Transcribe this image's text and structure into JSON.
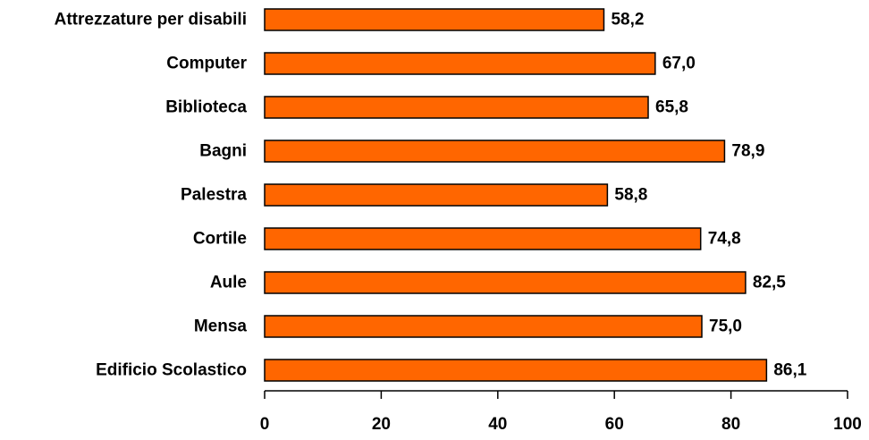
{
  "chart_data": {
    "type": "bar",
    "orientation": "horizontal",
    "categories": [
      "Attrezzature per disabili",
      "Computer",
      "Biblioteca",
      "Bagni",
      "Palestra",
      "Cortile",
      "Aule",
      "Mensa",
      "Edificio Scolastico"
    ],
    "values": [
      58.2,
      67.0,
      65.8,
      78.9,
      58.8,
      74.8,
      82.5,
      75.0,
      86.1
    ],
    "value_labels": [
      "58,2",
      "67,0",
      "65,8",
      "78,9",
      "58,8",
      "74,8",
      "82,5",
      "75,0",
      "86,1"
    ],
    "xlim": [
      0,
      100
    ],
    "xticks": [
      0,
      20,
      40,
      60,
      80,
      100
    ],
    "title": "",
    "xlabel": "",
    "ylabel": "",
    "grid": false,
    "bar_color": "#FF6600",
    "bar_edge_color": "#000000"
  }
}
